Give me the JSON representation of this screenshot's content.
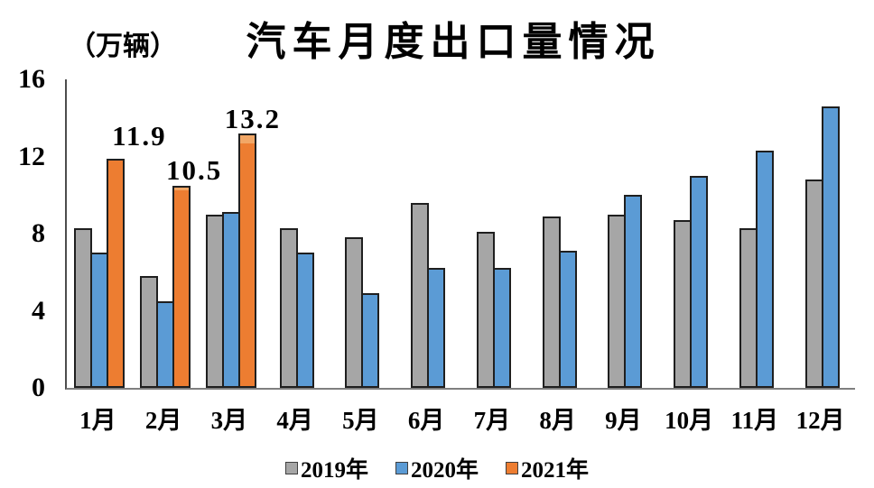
{
  "chart_data": {
    "type": "bar",
    "title": "汽车月度出口量情况",
    "unit_label": "（万辆）",
    "categories": [
      "1月",
      "2月",
      "3月",
      "4月",
      "5月",
      "6月",
      "7月",
      "8月",
      "9月",
      "10月",
      "11月",
      "12月"
    ],
    "series": [
      {
        "name": "2019年",
        "color": "#A6A6A6",
        "values": [
          8.3,
          5.8,
          9.0,
          8.3,
          7.8,
          9.6,
          8.1,
          8.9,
          9.0,
          8.7,
          8.3,
          10.8
        ]
      },
      {
        "name": "2020年",
        "color": "#5B9BD5",
        "values": [
          7.0,
          4.5,
          9.1,
          7.0,
          4.9,
          6.2,
          6.2,
          7.1,
          10.0,
          11.0,
          12.3,
          14.6
        ]
      },
      {
        "name": "2021年",
        "color": "#ED7D31",
        "values": [
          11.9,
          10.5,
          13.2
        ],
        "value_labels": [
          "11.9",
          "10.5",
          "13.2"
        ],
        "highlight_cap_color": "#F2A766"
      }
    ],
    "y_axis": {
      "min": 0,
      "max": 16,
      "ticks": [
        0,
        4,
        8,
        12,
        16
      ],
      "tick_labels": [
        "0",
        "4",
        "8",
        "12",
        "16"
      ]
    },
    "legend": {
      "position": "bottom",
      "entries": [
        "2019年",
        "2020年",
        "2021年"
      ]
    },
    "grid": false,
    "colors": {
      "bar_border": "#1F1F1F",
      "axis_y": "#4D4D4D",
      "axis_x": "#7F7F7F",
      "text": "#000000"
    }
  }
}
